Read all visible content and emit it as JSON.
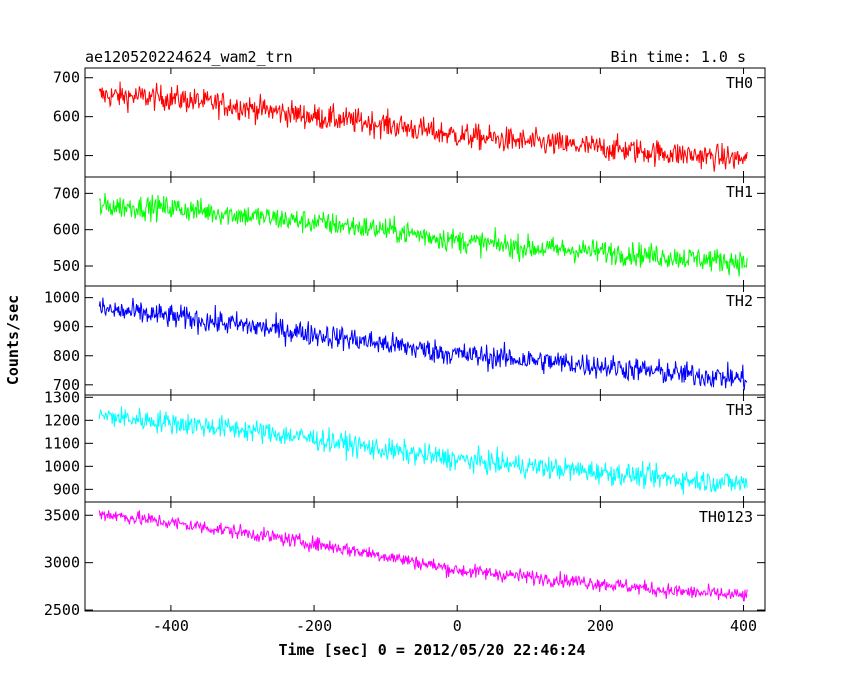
{
  "chart_data": {
    "type": "line",
    "title": "ae120520224624_wam2_trn",
    "subtitle": "Bin time: 1.0 s",
    "xlabel": "Time [sec] 0 = 2012/05/20 22:46:24",
    "ylabel": "Counts/sec",
    "xlim": [
      -520,
      430
    ],
    "xticks": [
      -400,
      -200,
      0,
      200,
      400
    ],
    "x_range_data": [
      -500,
      405
    ],
    "bin_time_s": 1.0,
    "grid": false,
    "panels": [
      {
        "name": "TH0",
        "color": "#ff0000",
        "ylim": [
          445,
          725
        ],
        "yticks": [
          500,
          600,
          700
        ],
        "trend_points": [
          [
            -500,
            655
          ],
          [
            -400,
            648
          ],
          [
            -300,
            625
          ],
          [
            -200,
            600
          ],
          [
            -100,
            580
          ],
          [
            0,
            552
          ],
          [
            100,
            535
          ],
          [
            200,
            520
          ],
          [
            300,
            505
          ],
          [
            405,
            490
          ]
        ],
        "noise_amplitude": 30
      },
      {
        "name": "TH1",
        "color": "#00ff00",
        "ylim": [
          445,
          745
        ],
        "yticks": [
          500,
          600,
          700
        ],
        "trend_points": [
          [
            -500,
            665
          ],
          [
            -400,
            660
          ],
          [
            -300,
            640
          ],
          [
            -200,
            620
          ],
          [
            -100,
            600
          ],
          [
            0,
            570
          ],
          [
            100,
            550
          ],
          [
            200,
            540
          ],
          [
            300,
            525
          ],
          [
            405,
            510
          ]
        ],
        "noise_amplitude": 30
      },
      {
        "name": "TH2",
        "color": "#0000ff",
        "ylim": [
          665,
          1040
        ],
        "yticks": [
          700,
          800,
          900,
          1000
        ],
        "trend_points": [
          [
            -500,
            960
          ],
          [
            -400,
            935
          ],
          [
            -300,
            905
          ],
          [
            -200,
            875
          ],
          [
            -100,
            840
          ],
          [
            0,
            805
          ],
          [
            100,
            785
          ],
          [
            200,
            765
          ],
          [
            300,
            740
          ],
          [
            405,
            720
          ]
        ],
        "noise_amplitude": 38
      },
      {
        "name": "TH3",
        "color": "#00ffff",
        "ylim": [
          845,
          1310
        ],
        "yticks": [
          900,
          1000,
          1100,
          1200,
          1300
        ],
        "trend_points": [
          [
            -500,
            1220
          ],
          [
            -400,
            1190
          ],
          [
            -300,
            1160
          ],
          [
            -200,
            1120
          ],
          [
            -100,
            1070
          ],
          [
            0,
            1030
          ],
          [
            100,
            1000
          ],
          [
            200,
            975
          ],
          [
            300,
            945
          ],
          [
            405,
            925
          ]
        ],
        "noise_amplitude": 45
      },
      {
        "name": "TH0123",
        "color": "#ff00ff",
        "ylim": [
          2490,
          3640
        ],
        "yticks": [
          2500,
          3000,
          3500
        ],
        "trend_points": [
          [
            -500,
            3520
          ],
          [
            -400,
            3420
          ],
          [
            -300,
            3320
          ],
          [
            -200,
            3200
          ],
          [
            -100,
            3070
          ],
          [
            0,
            2920
          ],
          [
            100,
            2850
          ],
          [
            200,
            2780
          ],
          [
            300,
            2700
          ],
          [
            405,
            2650
          ]
        ],
        "noise_amplitude": 70
      }
    ]
  }
}
